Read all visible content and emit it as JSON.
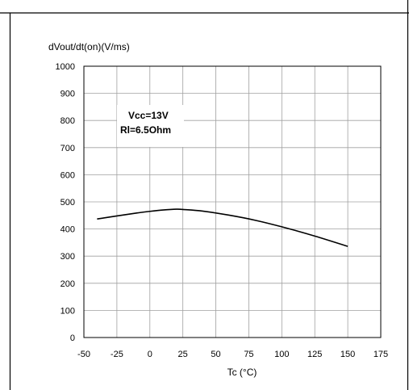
{
  "chart_data": {
    "type": "line",
    "title": "",
    "ylabel": "dVout/dt(on)(V/ms)",
    "xlabel": "Tc (°C)",
    "xlim": [
      -50,
      175
    ],
    "ylim": [
      0,
      1000
    ],
    "x_ticks": [
      "-50",
      "-25",
      "0",
      "25",
      "50",
      "75",
      "100",
      "125",
      "150",
      "175"
    ],
    "y_ticks": [
      "0",
      "100",
      "200",
      "300",
      "400",
      "500",
      "600",
      "700",
      "800",
      "900",
      "1000"
    ],
    "grid": true,
    "legend": "none",
    "annotations": [
      "Vcc=13V",
      "Rl=6.5Ohm"
    ],
    "series": [
      {
        "x": [
          -40,
          -25,
          -10,
          0,
          10,
          20,
          25,
          40,
          60,
          80,
          100,
          125,
          150
        ],
        "y": [
          437,
          448,
          459,
          465,
          470,
          473,
          472,
          466,
          451,
          432,
          408,
          374,
          336
        ]
      }
    ],
    "colors": {
      "line": "#000000",
      "grid": "#a0a0a0",
      "border": "#000000"
    }
  }
}
